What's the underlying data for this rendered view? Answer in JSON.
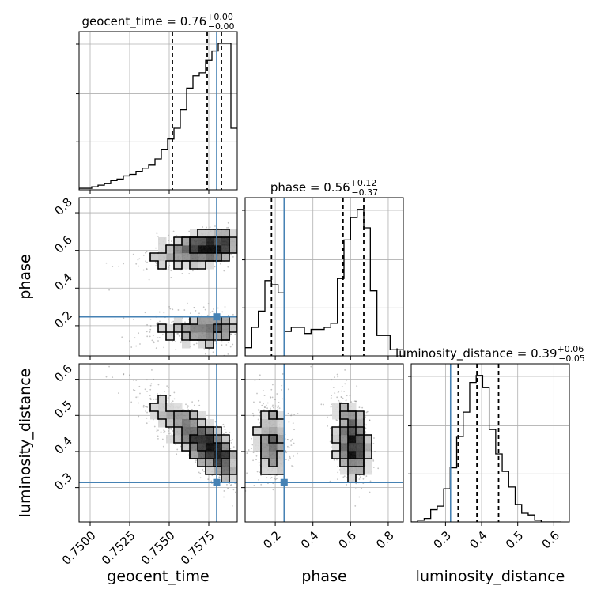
{
  "chart_data": {
    "type": "corner",
    "parameters": [
      "geocent_time",
      "phase",
      "luminosity_distance"
    ],
    "truths": {
      "geocent_time": 0.758,
      "phase": 0.247,
      "luminosity_distance": 0.314
    },
    "ranges": {
      "geocent_time": [
        0.7493,
        0.7593
      ],
      "phase": [
        0.04,
        0.88
      ],
      "luminosity_distance": [
        0.205,
        0.643
      ]
    },
    "ticks": {
      "geocent_time": [
        0.75,
        0.7525,
        0.755,
        0.7575
      ],
      "phase": [
        0.2,
        0.4,
        0.6,
        0.8
      ],
      "luminosity_distance": [
        0.3,
        0.4,
        0.5,
        0.6
      ]
    },
    "tick_labels": {
      "geocent_time": [
        "0.7500",
        "0.7525",
        "0.7550",
        "0.7575"
      ],
      "phase": [
        "0.2",
        "0.4",
        "0.6",
        "0.8"
      ],
      "luminosity_distance": [
        "0.3",
        "0.4",
        "0.5",
        "0.6"
      ]
    },
    "titles": [
      {
        "param": "geocent_time",
        "text": "geocent_time = 0.76",
        "plus": "+0.00",
        "minus": "−0.00"
      },
      {
        "param": "phase",
        "text": "phase = 0.56",
        "plus": "+0.12",
        "minus": "−0.37"
      },
      {
        "param": "luminosity_distance",
        "text": "luminosity_distance = 0.39",
        "plus": "+0.06",
        "minus": "−0.05"
      }
    ],
    "quantiles": {
      "geocent_time": [
        0.7552,
        0.7574,
        0.7583
      ],
      "phase": [
        0.18,
        0.56,
        0.67
      ],
      "luminosity_distance": [
        0.335,
        0.387,
        0.447
      ]
    },
    "histograms": {
      "geocent_time": {
        "edges": [
          0.7493,
          0.7497,
          0.7501,
          0.7505,
          0.7509,
          0.7513,
          0.7517,
          0.7521,
          0.7525,
          0.7529,
          0.7533,
          0.7537,
          0.7541,
          0.7545,
          0.7549,
          0.7553,
          0.7557,
          0.7561,
          0.7565,
          0.7569,
          0.7573,
          0.7577,
          0.7581,
          0.7585,
          0.7589,
          0.7593
        ],
        "counts": [
          1,
          1,
          2,
          3,
          4,
          6,
          7,
          9,
          10,
          12,
          14,
          16,
          20,
          26,
          33,
          40,
          52,
          66,
          74,
          76,
          84,
          90,
          95,
          95,
          40
        ]
      },
      "phase": {
        "edges": [
          0.04,
          0.075,
          0.11,
          0.145,
          0.18,
          0.215,
          0.25,
          0.285,
          0.32,
          0.355,
          0.39,
          0.425,
          0.46,
          0.495,
          0.53,
          0.565,
          0.6,
          0.635,
          0.67,
          0.705,
          0.74,
          0.775,
          0.81,
          0.845,
          0.88
        ],
        "counts": [
          4,
          14,
          22,
          37,
          35,
          31,
          12,
          14,
          14,
          11,
          13,
          13,
          14,
          16,
          38,
          57,
          68,
          72,
          63,
          32,
          10,
          10,
          3,
          3
        ]
      },
      "luminosity_distance": {
        "edges": [
          0.205,
          0.223,
          0.241,
          0.259,
          0.277,
          0.295,
          0.313,
          0.331,
          0.349,
          0.367,
          0.385,
          0.403,
          0.421,
          0.439,
          0.457,
          0.475,
          0.493,
          0.511,
          0.529,
          0.547,
          0.565,
          0.583,
          0.601,
          0.619
        ],
        "counts": [
          0,
          1,
          2,
          7,
          9,
          19,
          31,
          49,
          63,
          80,
          84,
          77,
          53,
          39,
          29,
          20,
          10,
          5,
          4,
          1,
          0,
          0,
          0
        ]
      }
    },
    "grid": true
  }
}
